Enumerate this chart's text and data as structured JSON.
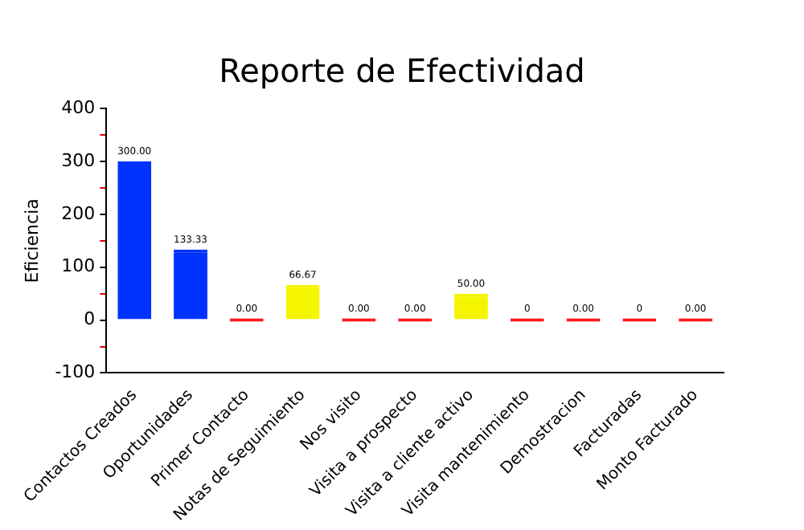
{
  "chart_data": {
    "type": "bar",
    "title": "Reporte de Efectividad",
    "ylabel": "Eficiencia",
    "categories": [
      "Contactos Creados",
      "Oportunidades",
      "Primer Contacto",
      "Notas de Seguimiento",
      "Nos visito",
      "Visita a prospecto",
      "Visita a cliente activo",
      "Visita mantenimiento",
      "Demostracion",
      "Facturadas",
      "Monto Facturado"
    ],
    "values": [
      300,
      133.33,
      0,
      66.67,
      0,
      0,
      50,
      0,
      0,
      0,
      0
    ],
    "value_labels": [
      "300.00",
      "133.33",
      "0.00",
      "66.67",
      "0.00",
      "0.00",
      "50.00",
      "0",
      "0.00",
      "0",
      "0.00"
    ],
    "colors": [
      "#0033ff",
      "#0033ff",
      "#ff0000",
      "#f5f500",
      "#ff0000",
      "#ff0000",
      "#f5f500",
      "#ff0000",
      "#ff0000",
      "#ff0000",
      "#ff0000"
    ],
    "ylim": [
      -100,
      400
    ],
    "yticks": [
      -100,
      {
        "value": -50,
        "label": null
      },
      0,
      {
        "value": 50,
        "label": null
      },
      100,
      {
        "value": 150,
        "label": null
      },
      200,
      {
        "value": 250,
        "label": null
      },
      300,
      {
        "value": 350,
        "label": null
      },
      400
    ],
    "grid": false,
    "legend": false
  }
}
